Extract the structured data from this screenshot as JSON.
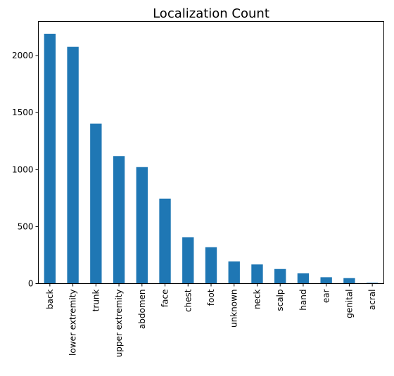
{
  "chart_data": {
    "type": "bar",
    "title": "Localization Count",
    "xlabel": "",
    "ylabel": "",
    "categories": [
      "back",
      "lower extremity",
      "trunk",
      "upper extremity",
      "abdomen",
      "face",
      "chest",
      "foot",
      "unknown",
      "neck",
      "scalp",
      "hand",
      "ear",
      "genital",
      "acral"
    ],
    "values": [
      2192,
      2077,
      1404,
      1118,
      1022,
      745,
      407,
      319,
      194,
      168,
      128,
      90,
      56,
      48,
      7
    ],
    "ylim": [
      0,
      2300
    ],
    "yticks": [
      0,
      500,
      1000,
      1500,
      2000
    ],
    "bar_color": "#1f77b4",
    "grid": false,
    "legend": "none"
  }
}
